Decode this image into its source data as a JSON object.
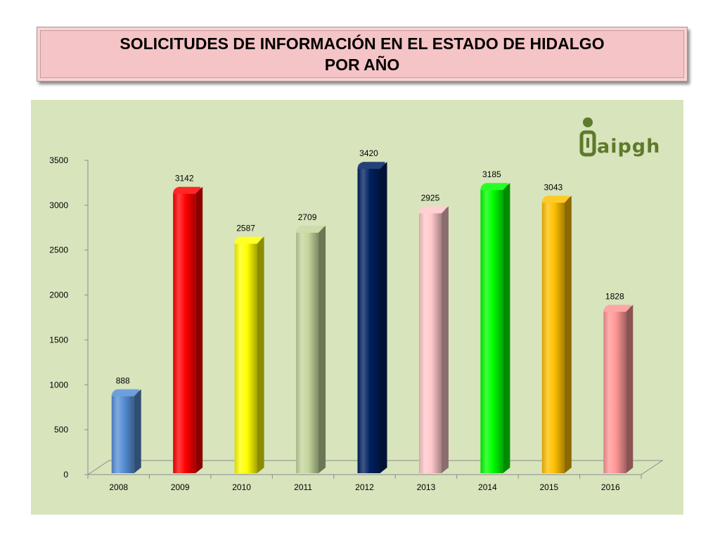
{
  "header": {
    "title_line1": "SOLICITUDES DE INFORMACIÓN EN EL ESTADO DE HIDALGO",
    "title_line2": "POR AÑO"
  },
  "logo": {
    "text": "aipgh",
    "color": "#5e7a2a"
  },
  "chart_data": {
    "type": "bar",
    "style": "3d-cylinder",
    "categories": [
      "2008",
      "2009",
      "2010",
      "2011",
      "2012",
      "2013",
      "2014",
      "2015",
      "2016"
    ],
    "values": [
      888,
      3142,
      2587,
      2709,
      3420,
      2925,
      3185,
      3043,
      1828
    ],
    "colors": [
      "#558ed5",
      "#ff0000",
      "#ffff00",
      "#c3d69b",
      "#002060",
      "#ffc7c9",
      "#00ff00",
      "#ffc000",
      "#ff9696"
    ],
    "ylim": [
      0,
      3500
    ],
    "yticks": [
      0,
      500,
      1000,
      1500,
      2000,
      2500,
      3000,
      3500
    ],
    "grid": false,
    "legend": "none",
    "data_labels": true
  }
}
